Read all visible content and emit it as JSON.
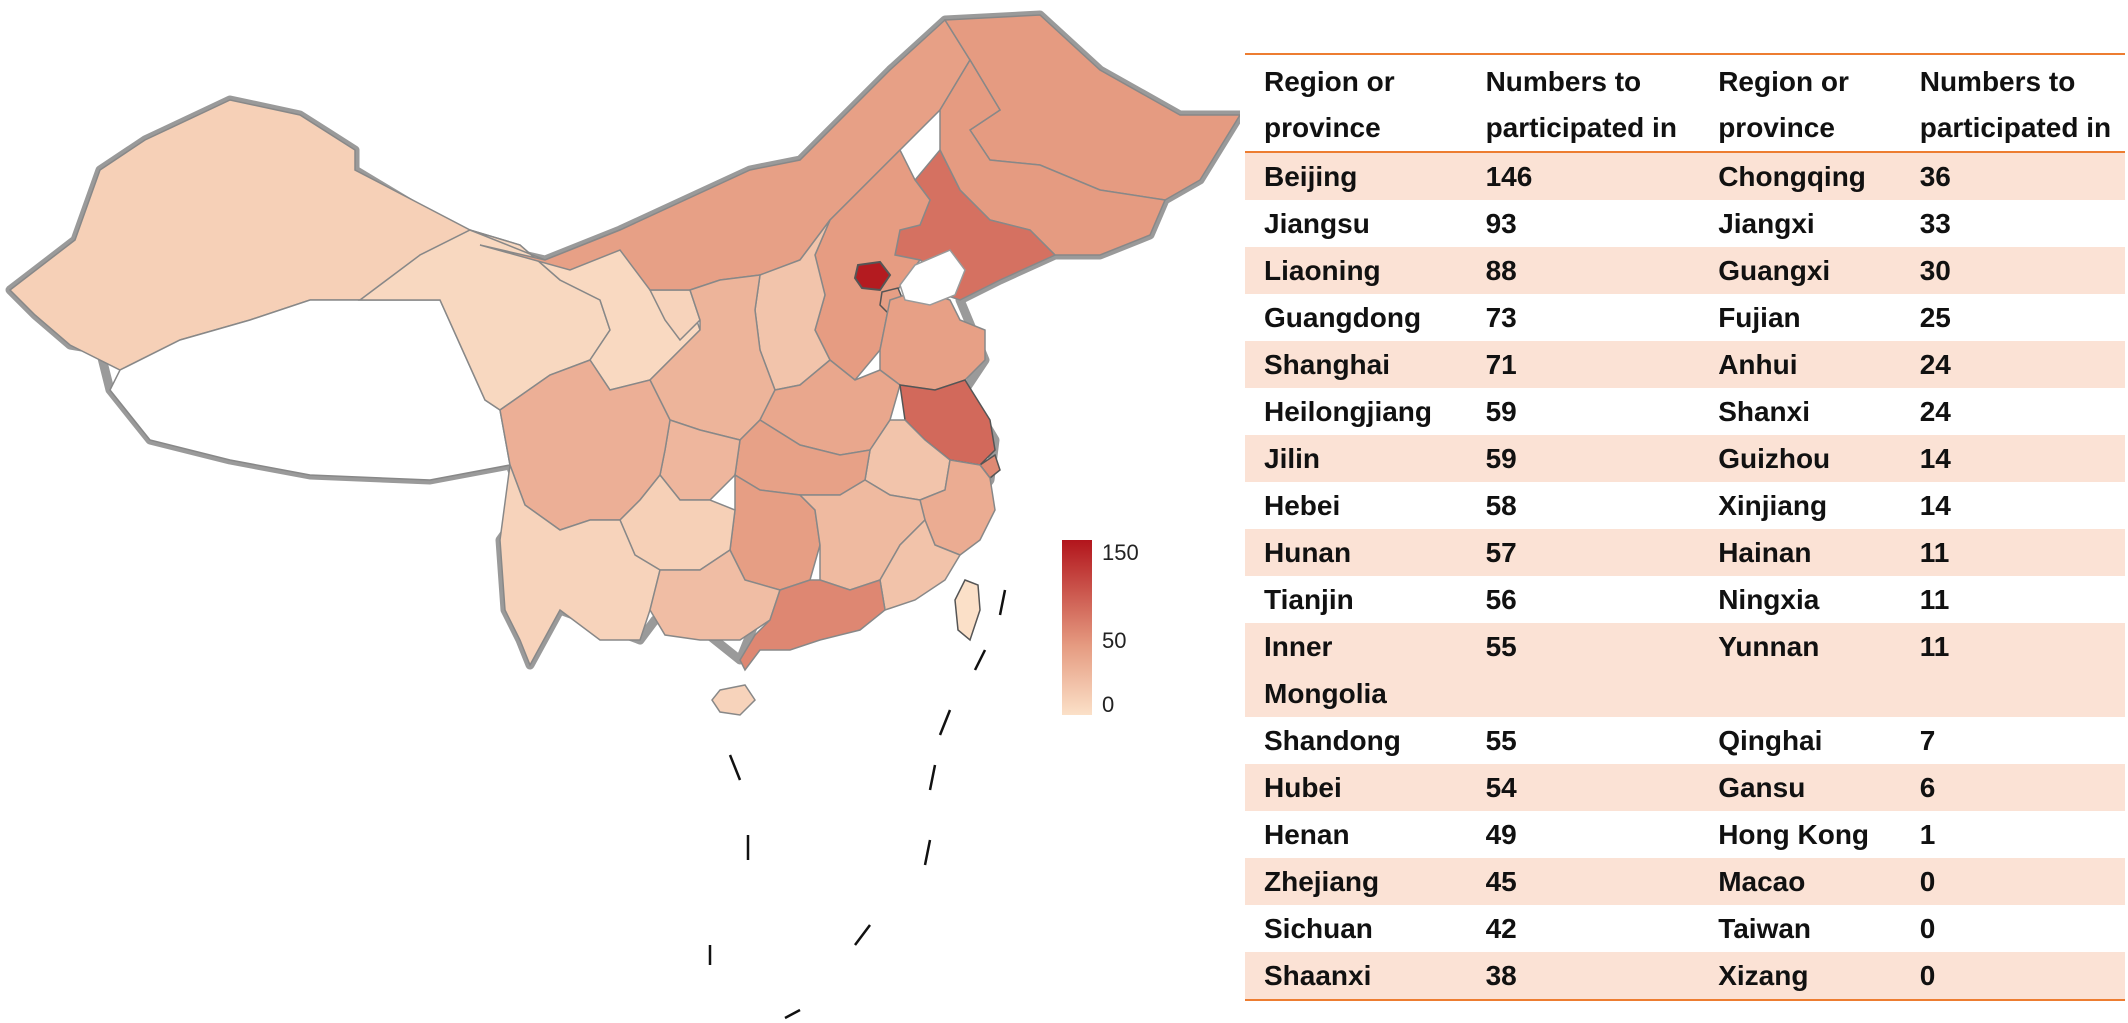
{
  "table": {
    "headers": [
      "Region or province",
      "Numbers to participated in",
      "Region or province",
      "Numbers to participated in"
    ],
    "rows": [
      [
        "Beijing",
        "146",
        "Chongqing",
        "36"
      ],
      [
        "Jiangsu",
        "93",
        "Jiangxi",
        "33"
      ],
      [
        "Liaoning",
        "88",
        "Guangxi",
        "30"
      ],
      [
        "Guangdong",
        "73",
        "Fujian",
        "25"
      ],
      [
        "Shanghai",
        "71",
        "Anhui",
        "24"
      ],
      [
        "Heilongjiang",
        "59",
        "Shanxi",
        "24"
      ],
      [
        "Jilin",
        "59",
        "Guizhou",
        "14"
      ],
      [
        "Hebei",
        "58",
        "Xinjiang",
        "14"
      ],
      [
        "Hunan",
        "57",
        "Hainan",
        "11"
      ],
      [
        "Tianjin",
        "56",
        "Ningxia",
        "11"
      ],
      [
        "Inner Mongolia",
        "55",
        "Yunnan",
        "11"
      ],
      [
        "Shandong",
        "55",
        "Qinghai",
        "7"
      ],
      [
        "Hubei",
        "54",
        "Gansu",
        "6"
      ],
      [
        "Henan",
        "49",
        "Hong Kong",
        "1"
      ],
      [
        "Zhejiang",
        "45",
        "Macao",
        "0"
      ],
      [
        "Sichuan",
        "42",
        "Taiwan",
        "0"
      ],
      [
        "Shaanxi",
        "38",
        "Xizang",
        "0"
      ]
    ]
  },
  "legend": {
    "ticks": [
      "150",
      "50",
      "0"
    ],
    "min": 0,
    "max": 150,
    "color_low": "#FBE0C8",
    "color_mid": "#E59A80",
    "color_high": "#B2151C"
  },
  "map": {
    "border_color": "#9A9A9A",
    "region_values": {
      "Xinjiang": 14,
      "Xizang": 0,
      "Qinghai": 7,
      "Gansu": 6,
      "Inner Mongolia": 55,
      "Heilongjiang": 59,
      "Jilin": 59,
      "Liaoning": 88,
      "Beijing": 146,
      "Tianjin": 56,
      "Hebei": 58,
      "Shanxi": 24,
      "Shaanxi": 38,
      "Ningxia": 11,
      "Sichuan": 42,
      "Chongqing": 36,
      "Yunnan": 11,
      "Guizhou": 14,
      "Guangxi": 30,
      "Guangdong": 73,
      "Hainan": 11,
      "Hunan": 57,
      "Hubei": 54,
      "Henan": 49,
      "Shandong": 55,
      "Jiangsu": 93,
      "Shanghai": 71,
      "Anhui": 24,
      "Zhejiang": 45,
      "Jiangxi": 33,
      "Fujian": 25,
      "Taiwan": 0
    }
  }
}
